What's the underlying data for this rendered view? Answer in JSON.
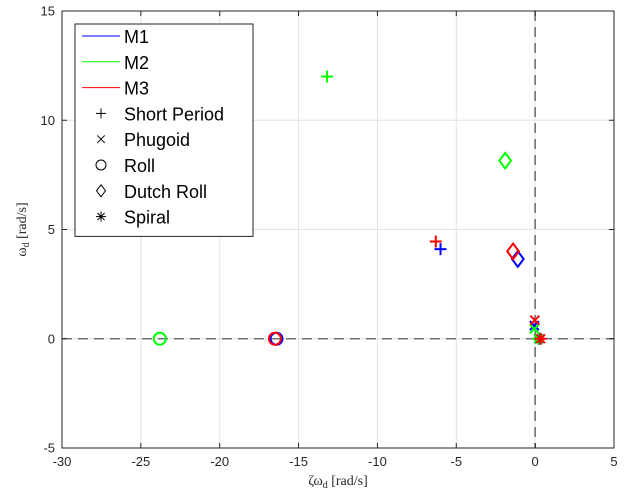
{
  "chart_data": {
    "type": "scatter",
    "title": "",
    "xlabel": "ζω",
    "xlabel_sub": "d",
    "xlabel_unit": " [rad/s]",
    "ylabel": "ω",
    "ylabel_sub": "d",
    "ylabel_unit": " [rad/s]",
    "xlim": [
      -30,
      5
    ],
    "ylim": [
      -5,
      15
    ],
    "xticks": [
      -30,
      -25,
      -20,
      -15,
      -10,
      -5,
      0,
      5
    ],
    "yticks": [
      -5,
      0,
      5,
      10,
      15
    ],
    "grid": true,
    "zero_lines": true,
    "legend_placement": "top-left",
    "series_legend": [
      {
        "name": "M1",
        "color": "#0000ff"
      },
      {
        "name": "M2",
        "color": "#00ff00"
      },
      {
        "name": "M3",
        "color": "#ff0000"
      }
    ],
    "marker_legend": [
      {
        "name": "Short Period",
        "marker": "plus"
      },
      {
        "name": "Phugoid",
        "marker": "x"
      },
      {
        "name": "Roll",
        "marker": "circle"
      },
      {
        "name": "Dutch Roll",
        "marker": "diamond"
      },
      {
        "name": "Spiral",
        "marker": "star"
      }
    ],
    "points": [
      {
        "series": "M1",
        "mode": "Short Period",
        "x": -6.0,
        "y": 4.1
      },
      {
        "series": "M1",
        "mode": "Phugoid",
        "x": -0.05,
        "y": 0.6
      },
      {
        "series": "M1",
        "mode": "Roll",
        "x": -16.4,
        "y": 0.0
      },
      {
        "series": "M1",
        "mode": "Dutch Roll",
        "x": -1.1,
        "y": 3.65
      },
      {
        "series": "M1",
        "mode": "Spiral",
        "x": 0.25,
        "y": 0.0
      },
      {
        "series": "M2",
        "mode": "Short Period",
        "x": -13.2,
        "y": 12.0
      },
      {
        "series": "M2",
        "mode": "Phugoid",
        "x": -0.05,
        "y": 0.45
      },
      {
        "series": "M2",
        "mode": "Roll",
        "x": -23.8,
        "y": 0.0
      },
      {
        "series": "M2",
        "mode": "Dutch Roll",
        "x": -1.9,
        "y": 8.15
      },
      {
        "series": "M2",
        "mode": "Spiral",
        "x": 0.2,
        "y": 0.0
      },
      {
        "series": "M3",
        "mode": "Short Period",
        "x": -6.3,
        "y": 4.45
      },
      {
        "series": "M3",
        "mode": "Phugoid",
        "x": -0.02,
        "y": 0.85
      },
      {
        "series": "M3",
        "mode": "Roll",
        "x": -16.5,
        "y": 0.0
      },
      {
        "series": "M3",
        "mode": "Dutch Roll",
        "x": -1.4,
        "y": 4.0
      },
      {
        "series": "M3",
        "mode": "Spiral",
        "x": 0.35,
        "y": 0.0
      }
    ]
  }
}
